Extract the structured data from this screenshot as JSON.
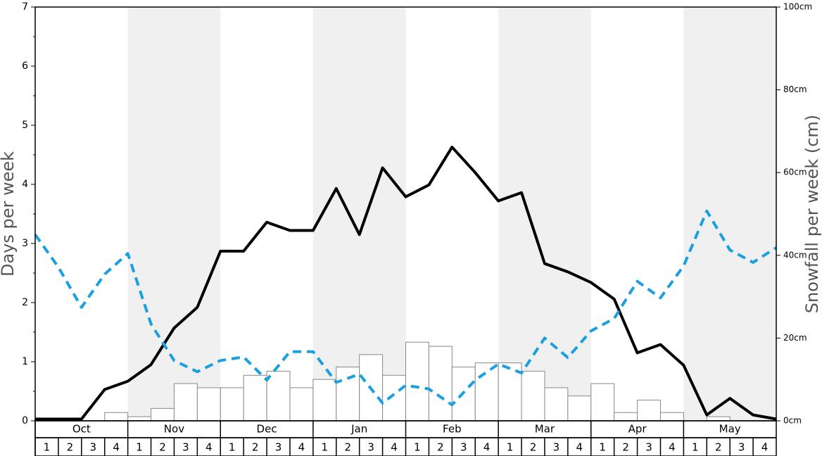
{
  "chart_data": {
    "type": "bar-line",
    "y_label": "Days per week",
    "y2_label": "Snowfall per week (cm)",
    "months": [
      "Oct",
      "Nov",
      "Dec",
      "Jan",
      "Feb",
      "Mar",
      "Apr",
      "May"
    ],
    "categories": [
      1,
      2,
      3,
      4,
      1,
      2,
      3,
      4,
      1,
      2,
      3,
      4,
      1,
      2,
      3,
      4,
      1,
      2,
      3,
      4,
      1,
      2,
      3,
      4,
      1,
      2,
      3,
      4,
      1,
      2,
      3,
      4
    ],
    "bars": {
      "axis": "y2",
      "fill": "#ffffff",
      "stroke": "#888888",
      "values": [
        0,
        0,
        0,
        2,
        1,
        3,
        9,
        8,
        8,
        11,
        12,
        8,
        10,
        13,
        16,
        11,
        19,
        18,
        13,
        14,
        14,
        12,
        8,
        6,
        9,
        2,
        5,
        2,
        0,
        1,
        0,
        0
      ]
    },
    "x": [
      0,
      1,
      2,
      3,
      4,
      5,
      6,
      7,
      8,
      9,
      10,
      11,
      12,
      13,
      14,
      15,
      16,
      17,
      18,
      19,
      20,
      21,
      22,
      23,
      24,
      25,
      26,
      27,
      28,
      29,
      30,
      31,
      32
    ],
    "xlim": [
      0,
      32
    ],
    "series": [
      {
        "color": "#000000",
        "dashed": false,
        "values": [
          0.03,
          0.03,
          0.03,
          0.53,
          0.67,
          0.95,
          1.57,
          1.92,
          2.87,
          2.87,
          3.36,
          3.22,
          3.22,
          3.93,
          3.15,
          4.28,
          3.79,
          3.99,
          4.63,
          4.2,
          3.72,
          3.86,
          2.66,
          2.52,
          2.34,
          2.06,
          1.15,
          1.29,
          0.94,
          0.1,
          0.38,
          0.1,
          0.03
        ]
      },
      {
        "color": "#1a9fe0",
        "dashed": true,
        "values": [
          3.15,
          2.6,
          1.92,
          2.48,
          2.83,
          1.64,
          1.02,
          0.83,
          1.02,
          1.08,
          0.69,
          1.17,
          1.17,
          0.65,
          0.79,
          0.3,
          0.6,
          0.54,
          0.27,
          0.69,
          0.96,
          0.81,
          1.4,
          1.07,
          1.52,
          1.73,
          2.36,
          2.08,
          2.62,
          3.55,
          2.89,
          2.68,
          2.93
        ]
      }
    ],
    "ylim": [
      0,
      7
    ],
    "yticks": [
      0,
      1,
      2,
      3,
      4,
      5,
      6,
      7
    ],
    "y2lim": [
      0,
      100
    ],
    "y2ticks": [
      {
        "value": 0,
        "label": "0cm"
      },
      {
        "value": 20,
        "label": "20cm"
      },
      {
        "value": 40,
        "label": "40cm"
      },
      {
        "value": 60,
        "label": "60cm"
      },
      {
        "value": 80,
        "label": "80cm"
      },
      {
        "value": 100,
        "label": "100cm"
      }
    ],
    "band_color": "#f0f0f0"
  }
}
